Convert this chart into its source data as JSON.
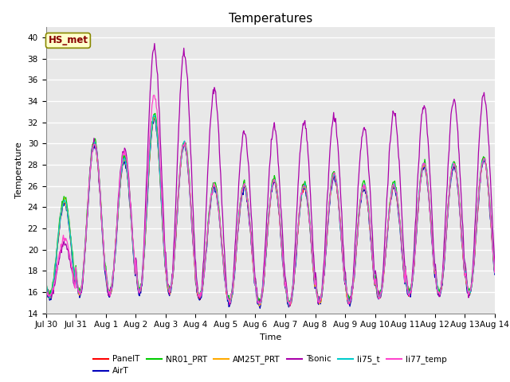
{
  "title": "Temperatures",
  "xlabel": "Time",
  "ylabel": "Temperature",
  "ylim": [
    14,
    41
  ],
  "yticks": [
    14,
    16,
    18,
    20,
    22,
    24,
    26,
    28,
    30,
    32,
    34,
    36,
    38,
    40
  ],
  "series_colors": {
    "PanelT": "#ff0000",
    "AirT": "#0000bb",
    "NR01_PRT": "#00cc00",
    "AM25T_PRT": "#ffaa00",
    "Tsonic": "#aa00aa",
    "li75_t": "#00cccc",
    "li77_temp": "#ff44cc"
  },
  "series_order": [
    "PanelT",
    "AirT",
    "NR01_PRT",
    "AM25T_PRT",
    "Tsonic",
    "li75_t",
    "li77_temp"
  ],
  "legend_label": "HS_met",
  "legend_box_facecolor": "#ffffcc",
  "legend_text_color": "#880000",
  "legend_border_color": "#888800",
  "plot_bg_color": "#e8e8e8",
  "fig_bg_color": "#ffffff",
  "grid_color": "#ffffff",
  "date_labels": [
    "Jul 30",
    "Jul 31",
    "Aug 1",
    "Aug 2",
    "Aug 3",
    "Aug 4",
    "Aug 5",
    "Aug 6",
    "Aug 7",
    "Aug 8",
    "Aug 9",
    "Aug 10",
    "Aug 11",
    "Aug 12",
    "Aug 13",
    "Aug 14"
  ],
  "title_fontsize": 11,
  "axis_label_fontsize": 8,
  "tick_fontsize": 7.5
}
